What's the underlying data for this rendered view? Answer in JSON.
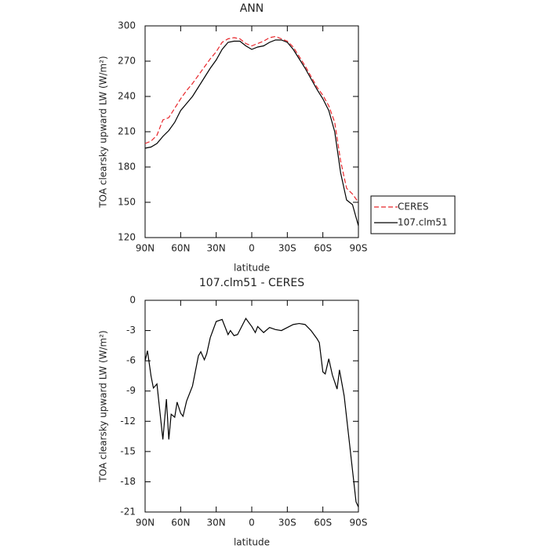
{
  "chart_data": [
    {
      "type": "line",
      "title": "ANN",
      "ylabel": "TOA clearsky upward LW (W/m²)",
      "xlabel": "latitude",
      "x": [
        90,
        85,
        80,
        75,
        70,
        65,
        60,
        55,
        50,
        45,
        40,
        35,
        30,
        25,
        20,
        15,
        10,
        5,
        0,
        -5,
        -10,
        -15,
        -20,
        -25,
        -30,
        -35,
        -40,
        -45,
        -50,
        -55,
        -60,
        -65,
        -70,
        -75,
        -80,
        -85,
        -90
      ],
      "series": [
        {
          "name": "CERES",
          "color": "#e8262b",
          "line_style": "dashed",
          "values": [
            200,
            202,
            207,
            220,
            222,
            230,
            238,
            245,
            251,
            258,
            265,
            272,
            278,
            286,
            289,
            290,
            289,
            285,
            283,
            285,
            287,
            290,
            291,
            289,
            287,
            282,
            274,
            266,
            257,
            248,
            241,
            232,
            218,
            185,
            162,
            157,
            150
          ]
        },
        {
          "name": "107.clm51",
          "color": "#000000",
          "line_style": "solid",
          "values": [
            196,
            197,
            200,
            206,
            211,
            218,
            228,
            234,
            240,
            248,
            256,
            264,
            271,
            280,
            286,
            287,
            287,
            283,
            280,
            282,
            283,
            286,
            288,
            288,
            286,
            280,
            272,
            264,
            255,
            246,
            238,
            228,
            210,
            175,
            152,
            148,
            130
          ]
        }
      ],
      "xlim": [
        90,
        -90
      ],
      "xticks": [
        {
          "value": 90,
          "label": "90N"
        },
        {
          "value": 60,
          "label": "60N"
        },
        {
          "value": 30,
          "label": "30N"
        },
        0,
        {
          "value": -30,
          "label": "30S"
        },
        {
          "value": -60,
          "label": "60S"
        },
        {
          "value": -90,
          "label": "90S"
        }
      ],
      "ylim": [
        120,
        300
      ],
      "yticks": [
        120,
        150,
        180,
        210,
        240,
        270,
        300
      ],
      "legend": "right"
    },
    {
      "type": "line",
      "title": "107.clm51 - CERES",
      "ylabel": "TOA clearsky upward LW (W/m²)",
      "xlabel": "latitude",
      "x": [
        90,
        88,
        85,
        83,
        80,
        75,
        72,
        70,
        68,
        65,
        63,
        60,
        58,
        55,
        50,
        45,
        43,
        40,
        38,
        35,
        30,
        25,
        20,
        18,
        15,
        12,
        5,
        0,
        -3,
        -5,
        -10,
        -15,
        -20,
        -25,
        -30,
        -35,
        -40,
        -45,
        -50,
        -55,
        -57,
        -60,
        -62,
        -65,
        -68,
        -72,
        -74,
        -78,
        -88,
        -90
      ],
      "series": [
        {
          "name": "107.clm51 - CERES",
          "color": "#000000",
          "line_style": "solid",
          "values": [
            -6,
            -5,
            -7.5,
            -8.7,
            -8.3,
            -13.8,
            -9.8,
            -13.8,
            -11.3,
            -11.6,
            -10.1,
            -11.2,
            -11.5,
            -10,
            -8.5,
            -5.5,
            -5.1,
            -5.9,
            -5.3,
            -3.7,
            -2.1,
            -1.9,
            -3.4,
            -3,
            -3.5,
            -3.4,
            -1.8,
            -2.6,
            -3.2,
            -2.6,
            -3.2,
            -2.7,
            -2.9,
            -3,
            -2.7,
            -2.4,
            -2.3,
            -2.4,
            -3,
            -3.8,
            -4.2,
            -7.1,
            -7.3,
            -5.8,
            -7.4,
            -8.8,
            -6.9,
            -9.5,
            -20,
            -20.5
          ]
        }
      ],
      "xlim": [
        90,
        -90
      ],
      "xticks": [
        {
          "value": 90,
          "label": "90N"
        },
        {
          "value": 60,
          "label": "60N"
        },
        {
          "value": 30,
          "label": "30N"
        },
        0,
        {
          "value": -30,
          "label": "30S"
        },
        {
          "value": -60,
          "label": "60S"
        },
        {
          "value": -90,
          "label": "90S"
        }
      ],
      "ylim": [
        -21,
        0
      ],
      "yticks": [
        -21,
        -18,
        -15,
        -12,
        -9,
        -6,
        -3,
        0
      ]
    }
  ]
}
